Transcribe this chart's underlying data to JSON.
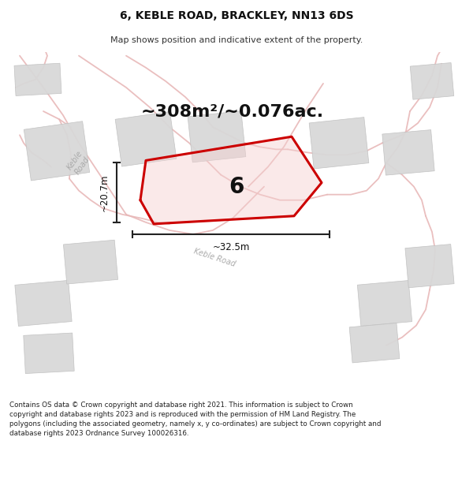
{
  "title": "6, KEBLE ROAD, BRACKLEY, NN13 6DS",
  "subtitle": "Map shows position and indicative extent of the property.",
  "area_label": "~308m²/~0.076ac.",
  "number_label": "6",
  "dim_width_label": "~32.5m",
  "dim_height_label": "~20.7m",
  "footer": "Contains OS data © Crown copyright and database right 2021. This information is subject to Crown copyright and database rights 2023 and is reproduced with the permission of HM Land Registry. The polygons (including the associated geometry, namely x, y co-ordinates) are subject to Crown copyright and database rights 2023 Ordnance Survey 100026316.",
  "map_bg": "#f7f7f7",
  "building_color": "#d8d8d8",
  "building_edge": "#c0c0c0",
  "road_color": "#e8b8b8",
  "red_outline": "#cc0000",
  "red_fill": "#f5d0d0",
  "dim_line_color": "#222222",
  "road_label_color": "#aaaaaa"
}
